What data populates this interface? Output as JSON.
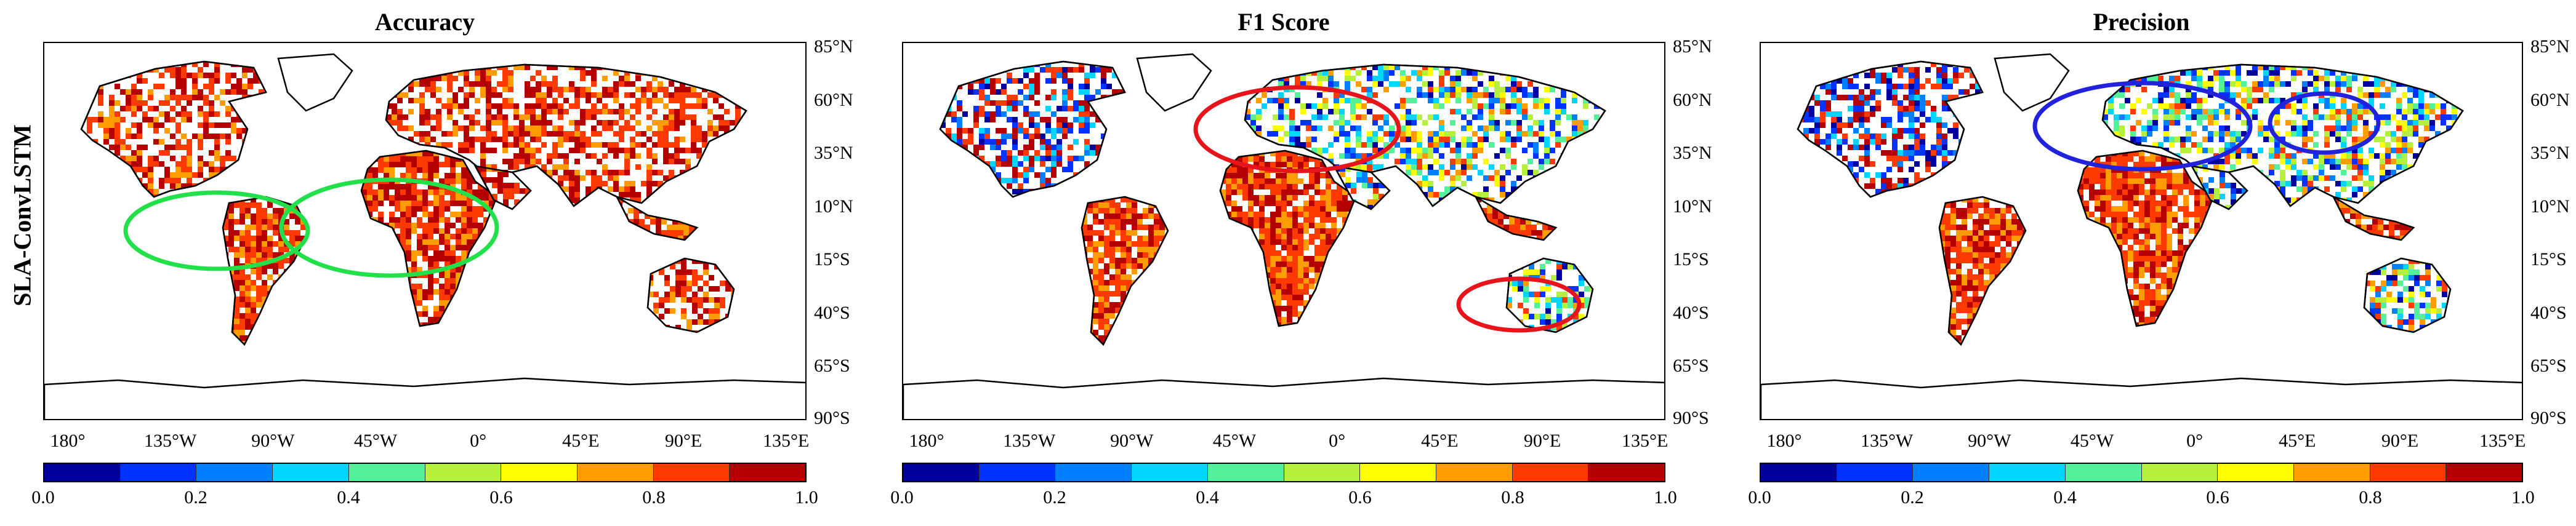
{
  "row_label": "SLA-ConvLSTM",
  "panels": [
    {
      "title": "Accuracy",
      "annotation_color": "#22e04a",
      "annotation_ellipses": [
        "South America",
        "Central Africa"
      ]
    },
    {
      "title": "F1 Score",
      "annotation_color": "#e8141c",
      "annotation_ellipses": [
        "Northern Eurasia / Siberia",
        "Australia"
      ]
    },
    {
      "title": "Precision",
      "annotation_color": "#2222dd",
      "annotation_ellipses": [
        "Eastern Europe / Western Russia",
        "Northeast Asia"
      ]
    }
  ],
  "latitude_labels": [
    "85°N",
    "60°N",
    "35°N",
    "10°N",
    "15°S",
    "40°S",
    "65°S",
    "90°S"
  ],
  "longitude_labels": [
    "180°",
    "135°W",
    "90°W",
    "45°W",
    "0°",
    "45°E",
    "90°E",
    "135°E"
  ],
  "colorbar": {
    "ticks": [
      "0.0",
      "0.2",
      "0.4",
      "0.6",
      "0.8",
      "1.0"
    ],
    "colors": [
      "#00009e",
      "#0033ff",
      "#0080ff",
      "#00d5ff",
      "#55f09a",
      "#b4f03c",
      "#ffff00",
      "#ff9d00",
      "#ff3a00",
      "#b40000"
    ]
  }
}
